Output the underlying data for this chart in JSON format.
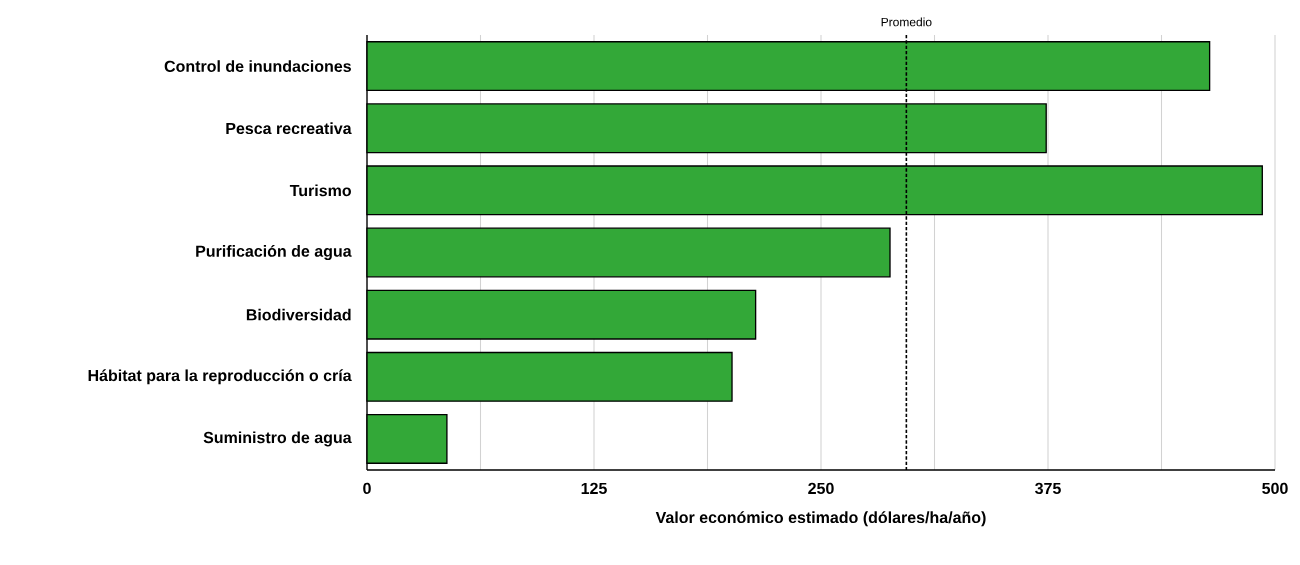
{
  "chart_data": {
    "type": "bar",
    "orientation": "horizontal",
    "xlabel": "Valor económico estimado (dólares/ha/año)",
    "categories": [
      "Control de inundaciones",
      "Pesca recreativa",
      "Turismo",
      "Purificación de agua",
      "Biodiversidad",
      "Hábitat para la reproducción o cría",
      "Suministro de agua"
    ],
    "values": [
      464,
      374,
      493,
      288,
      214,
      201,
      44
    ],
    "color": "#33a838",
    "xlim": [
      0,
      500
    ],
    "xticks": [
      0,
      {
        "value": 62.5,
        "label": null
      },
      125,
      {
        "value": 187.5,
        "label": null
      },
      250,
      {
        "value": 312.5,
        "label": null
      },
      375,
      {
        "value": 437.5,
        "label": null
      },
      500
    ],
    "grid": "x",
    "ref_lines": [
      {
        "axis": "x",
        "value": 297,
        "label": "Promedio",
        "line_style": "dotted",
        "color": "#000000"
      }
    ]
  }
}
